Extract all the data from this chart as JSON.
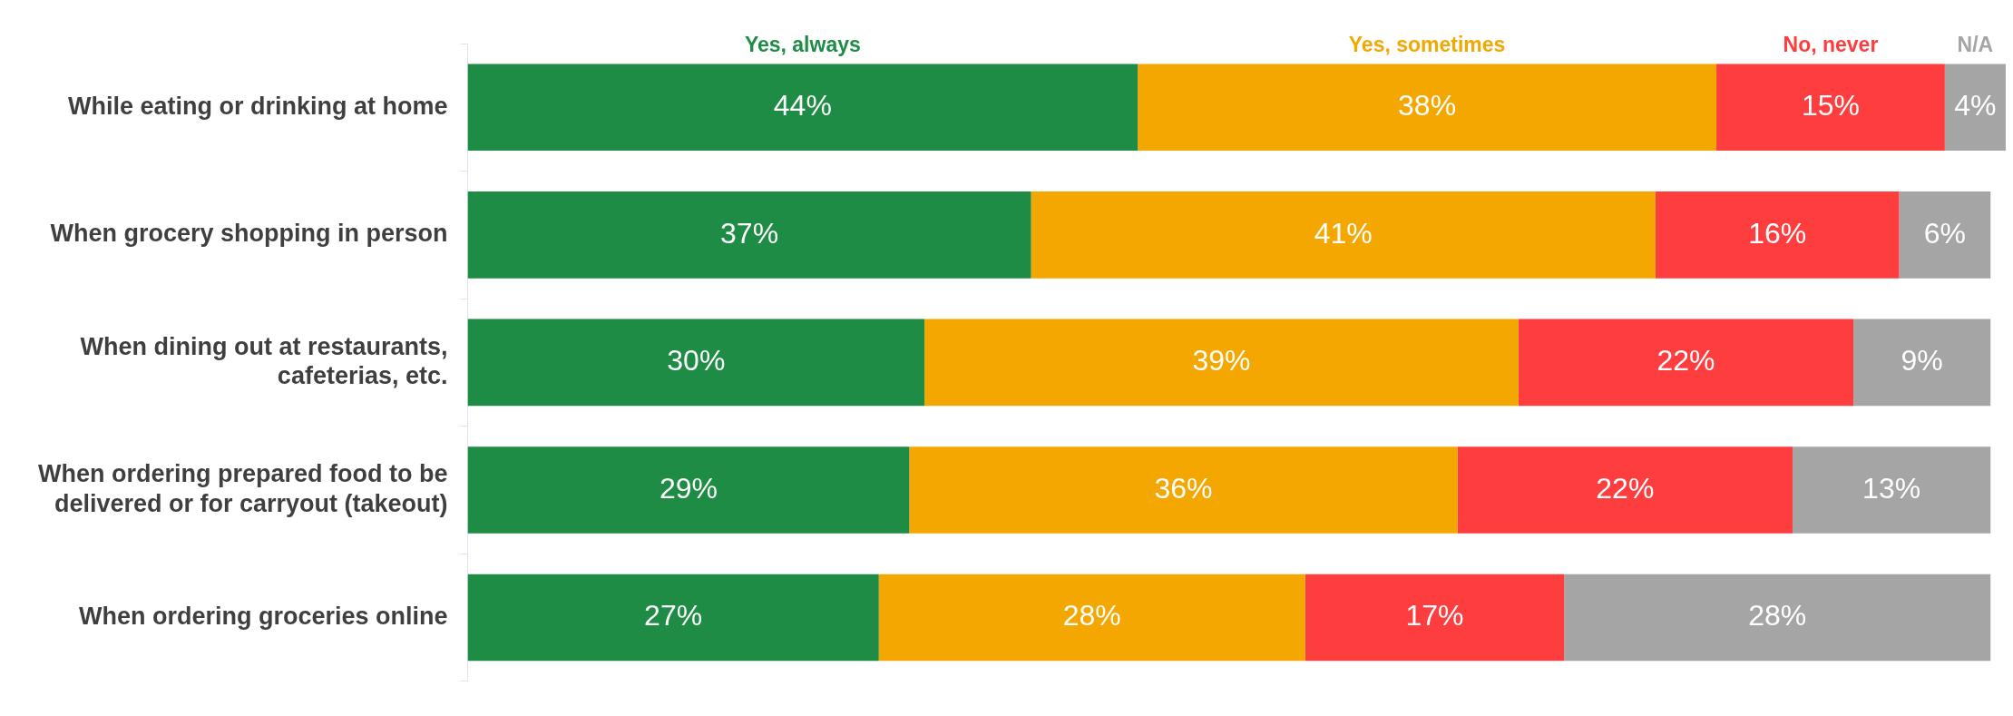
{
  "chart_data": {
    "type": "bar",
    "orientation": "horizontal",
    "stacked": true,
    "tick_labels": "y",
    "categories": [
      "While eating or drinking at home",
      "When grocery shopping in person",
      "When dining out at restaurants,\ncafeterias, etc.",
      "When ordering prepared food to be\ndelivered or for carryout (takeout)",
      "When ordering groceries online"
    ],
    "xlim": [
      0,
      101
    ],
    "series": [
      {
        "name": "Yes, always",
        "color": "#1e8c45",
        "values": [
          44,
          37,
          30,
          29,
          27
        ],
        "value_labels": [
          "44%",
          "37%",
          "30%",
          "29%",
          "27%"
        ]
      },
      {
        "name": "Yes, sometimes",
        "color": "#f4a700",
        "values": [
          38,
          41,
          39,
          36,
          28
        ],
        "value_labels": [
          "38%",
          "41%",
          "39%",
          "36%",
          "28%"
        ]
      },
      {
        "name": "No, never",
        "color": "#fe3d3f",
        "values": [
          15,
          16,
          22,
          22,
          17
        ],
        "value_labels": [
          "15%",
          "16%",
          "22%",
          "22%",
          "17%"
        ]
      },
      {
        "name": "N/A",
        "color": "#a5a5a5",
        "values": [
          4,
          6,
          9,
          13,
          28
        ],
        "value_labels": [
          "4%",
          "6%",
          "9%",
          "13%",
          "28%"
        ]
      }
    ]
  }
}
